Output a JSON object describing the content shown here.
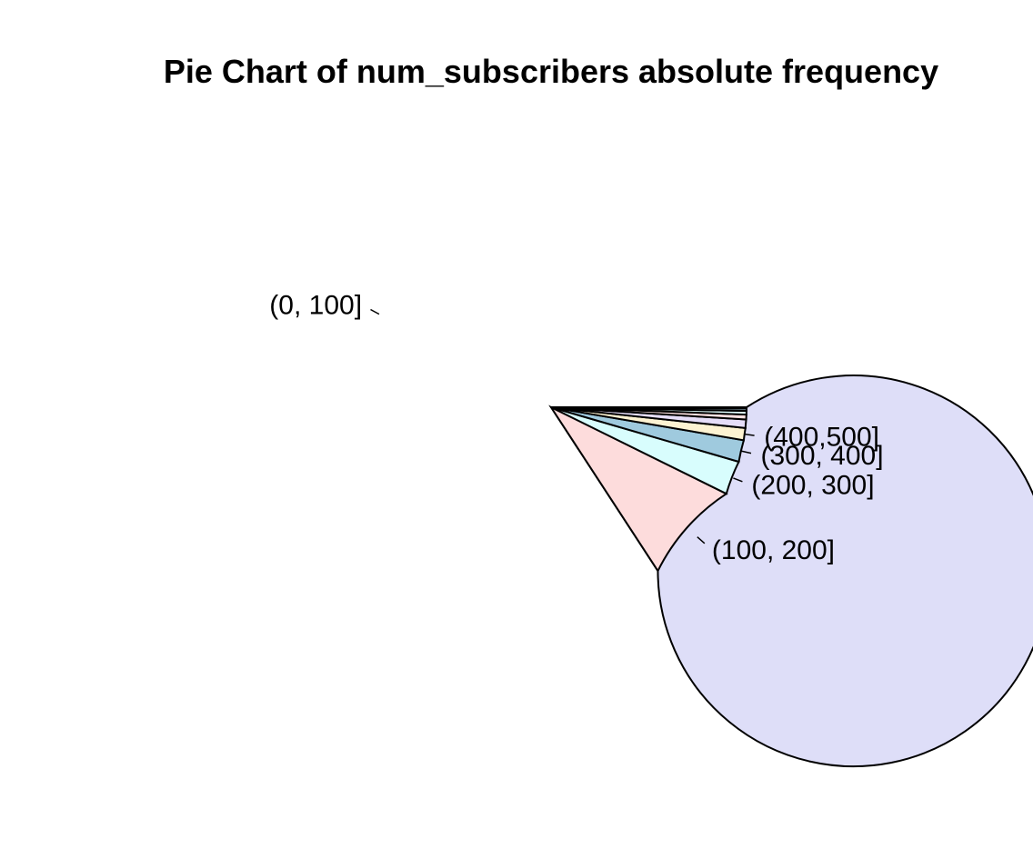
{
  "chart_data": {
    "type": "pie",
    "title": "Pie Chart of num_subscribers absolute frequency",
    "direction": "counterclockwise",
    "start_angle_deg": 0,
    "slices": [
      {
        "label": "(0, 100]",
        "value": 0.842,
        "color": "#dedef8",
        "show_label": true
      },
      {
        "label": "(100, 200]",
        "value": 0.085,
        "color": "#fddcdc",
        "show_label": true
      },
      {
        "label": "(200, 300]",
        "value": 0.028,
        "color": "#d8fdfd",
        "show_label": true
      },
      {
        "label": "(300, 400]",
        "value": 0.018,
        "color": "#9fcade",
        "show_label": true
      },
      {
        "label": "(400,500]",
        "value": 0.01,
        "color": "#fdf3d2",
        "show_label": true
      },
      {
        "label": "",
        "value": 0.007,
        "color": "#e6def9",
        "show_label": false
      },
      {
        "label": "",
        "value": 0.004,
        "color": "#fde2e2",
        "show_label": false
      },
      {
        "label": "",
        "value": 0.003,
        "color": "#e0fcfc",
        "show_label": false
      },
      {
        "label": "",
        "value": 0.002,
        "color": "#b7d6e6",
        "show_label": false
      },
      {
        "label": "",
        "value": 0.001,
        "color": "#6a7fa3",
        "show_label": false
      }
    ]
  }
}
